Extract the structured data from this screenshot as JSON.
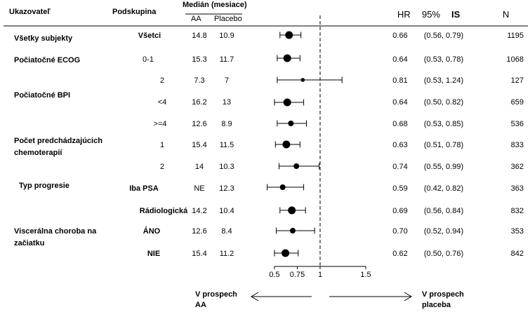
{
  "headers": {
    "ukazovatel": "Ukazovateľ",
    "podskupina": "Podskupina",
    "median": "Medián (mesiace)",
    "aa": "AA",
    "placebo": "Placebo",
    "hr": "HR",
    "ci_pct": "95%",
    "ci_label": "IS",
    "n": "N"
  },
  "arrows": {
    "left_line1": "V prospech",
    "left_line2": "AA",
    "right_line1": "V prospech",
    "right_line2": "placeba"
  },
  "chart_data": {
    "type": "forest",
    "xaxis": {
      "ticks": [
        0.5,
        0.75,
        1,
        1.5
      ],
      "tick_labels": [
        "0.5",
        "0.75",
        "1",
        "1.5"
      ],
      "reference_line": 1
    },
    "groups": [
      {
        "line1": "Všetky subjekty",
        "line2": ""
      },
      {
        "line1": "Počiatočné ECOG",
        "line2": ""
      },
      {
        "line1": "Počiatočné BPI",
        "line2": ""
      },
      {
        "line1": "Počet predchádzajúcich",
        "line2": "chemoterapií"
      },
      {
        "line1": "Typ progresie",
        "line2": ""
      },
      {
        "line1": "Viscerálna choroba na",
        "line2": "začiatku"
      }
    ],
    "rows": [
      {
        "subgroup": "Všetci",
        "sub_bold": true,
        "aa": "14.8",
        "placebo": "10.9",
        "hr": 0.66,
        "hr_label": "0.66",
        "ci_low": 0.56,
        "ci_high": 0.79,
        "ci_label": "(0.56,  0.79)",
        "n": "1195",
        "marker": "big"
      },
      {
        "subgroup": "0-1",
        "sub_bold": false,
        "aa": "15.3",
        "placebo": "11.7",
        "hr": 0.64,
        "hr_label": "0.64",
        "ci_low": 0.53,
        "ci_high": 0.78,
        "ci_label": "(0.53,  0.78)",
        "n": "1068",
        "marker": "big"
      },
      {
        "subgroup": "2",
        "sub_bold": false,
        "aa": "7.3",
        "placebo": "7",
        "hr": 0.81,
        "hr_label": "0.81",
        "ci_low": 0.53,
        "ci_high": 1.24,
        "ci_label": "(0.53,  1.24)",
        "n": "127",
        "marker": "small"
      },
      {
        "subgroup": "<4",
        "sub_bold": false,
        "aa": "16.2",
        "placebo": "13",
        "hr": 0.64,
        "hr_label": "0.64",
        "ci_low": 0.5,
        "ci_high": 0.82,
        "ci_label": "(0.50,  0.82)",
        "n": "659",
        "marker": "big"
      },
      {
        "subgroup": ">=4",
        "sub_bold": false,
        "aa": "12.6",
        "placebo": "8.9",
        "hr": 0.68,
        "hr_label": "0.68",
        "ci_low": 0.53,
        "ci_high": 0.85,
        "ci_label": "(0.53,  0.85)",
        "n": "536",
        "marker": "mid"
      },
      {
        "subgroup": "1",
        "sub_bold": false,
        "aa": "15.4",
        "placebo": "11.5",
        "hr": 0.63,
        "hr_label": "0.63",
        "ci_low": 0.51,
        "ci_high": 0.78,
        "ci_label": "(0.51,  0.78)",
        "n": "833",
        "marker": "big"
      },
      {
        "subgroup": "2",
        "sub_bold": false,
        "aa": "14",
        "placebo": "10.3",
        "hr": 0.74,
        "hr_label": "0.74",
        "ci_low": 0.55,
        "ci_high": 0.99,
        "ci_label": "(0.55,  0.99)",
        "n": "362",
        "marker": "mid"
      },
      {
        "subgroup": "Iba PSA",
        "sub_bold": true,
        "aa": "NE",
        "placebo": "12.3",
        "hr": 0.59,
        "hr_label": "0.59",
        "ci_low": 0.42,
        "ci_high": 0.82,
        "ci_label": "(0.42,  0.82)",
        "n": "363",
        "marker": "mid"
      },
      {
        "subgroup": "Rádiologická",
        "sub_bold": true,
        "aa": "14.2",
        "placebo": "10.4",
        "hr": 0.69,
        "hr_label": "0.69",
        "ci_low": 0.56,
        "ci_high": 0.84,
        "ci_label": "(0.56,  0.84)",
        "n": "832",
        "marker": "big"
      },
      {
        "subgroup": "ÁNO",
        "sub_bold": true,
        "aa": "12.6",
        "placebo": "8.4",
        "hr": 0.7,
        "hr_label": "0.70",
        "ci_low": 0.52,
        "ci_high": 0.94,
        "ci_label": "(0.52,  0.94)",
        "n": "353",
        "marker": "mid"
      },
      {
        "subgroup": "NIE",
        "sub_bold": true,
        "aa": "15.4",
        "placebo": "11.2",
        "hr": 0.62,
        "hr_label": "0.62",
        "ci_low": 0.5,
        "ci_high": 0.76,
        "ci_label": "(0.50,  0.76)",
        "n": "842",
        "marker": "big"
      }
    ]
  }
}
